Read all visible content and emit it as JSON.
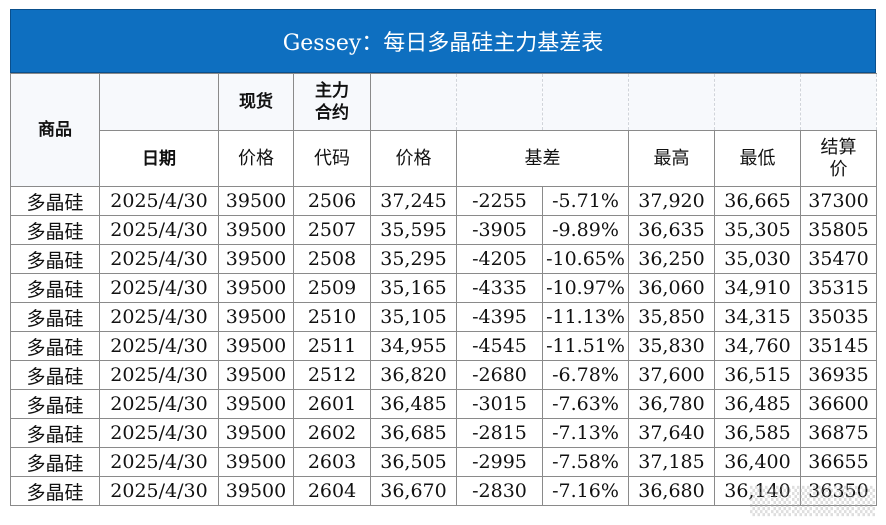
{
  "title": "Gessey：每日多晶硅主力基差表",
  "header": {
    "product": "商品",
    "spot": "现货",
    "main_contract": "主力\n合约",
    "date": "日期",
    "spot_price": "价格",
    "code": "代码",
    "price": "价格",
    "basis": "基差",
    "high": "最高",
    "low": "最低",
    "settle": "结算\n价"
  },
  "rows": [
    {
      "product": "多晶硅",
      "date": "2025/4/30",
      "spot": "39500",
      "code": "2506",
      "price": "37,245",
      "basis": "-2255",
      "basis_pct": "-5.71%",
      "high": "37,920",
      "low": "36,665",
      "settle": "37300"
    },
    {
      "product": "多晶硅",
      "date": "2025/4/30",
      "spot": "39500",
      "code": "2507",
      "price": "35,595",
      "basis": "-3905",
      "basis_pct": "-9.89%",
      "high": "36,635",
      "low": "35,305",
      "settle": "35805"
    },
    {
      "product": "多晶硅",
      "date": "2025/4/30",
      "spot": "39500",
      "code": "2508",
      "price": "35,295",
      "basis": "-4205",
      "basis_pct": "-10.65%",
      "high": "36,250",
      "low": "35,030",
      "settle": "35470"
    },
    {
      "product": "多晶硅",
      "date": "2025/4/30",
      "spot": "39500",
      "code": "2509",
      "price": "35,165",
      "basis": "-4335",
      "basis_pct": "-10.97%",
      "high": "36,060",
      "low": "34,910",
      "settle": "35315"
    },
    {
      "product": "多晶硅",
      "date": "2025/4/30",
      "spot": "39500",
      "code": "2510",
      "price": "35,105",
      "basis": "-4395",
      "basis_pct": "-11.13%",
      "high": "35,850",
      "low": "34,315",
      "settle": "35035"
    },
    {
      "product": "多晶硅",
      "date": "2025/4/30",
      "spot": "39500",
      "code": "2511",
      "price": "34,955",
      "basis": "-4545",
      "basis_pct": "-11.51%",
      "high": "35,830",
      "low": "34,760",
      "settle": "35145"
    },
    {
      "product": "多晶硅",
      "date": "2025/4/30",
      "spot": "39500",
      "code": "2512",
      "price": "36,820",
      "basis": "-2680",
      "basis_pct": "-6.78%",
      "high": "37,600",
      "low": "36,515",
      "settle": "36935"
    },
    {
      "product": "多晶硅",
      "date": "2025/4/30",
      "spot": "39500",
      "code": "2601",
      "price": "36,485",
      "basis": "-3015",
      "basis_pct": "-7.63%",
      "high": "36,780",
      "low": "36,485",
      "settle": "36600"
    },
    {
      "product": "多晶硅",
      "date": "2025/4/30",
      "spot": "39500",
      "code": "2602",
      "price": "36,685",
      "basis": "-2815",
      "basis_pct": "-7.13%",
      "high": "37,640",
      "low": "36,585",
      "settle": "36875"
    },
    {
      "product": "多晶硅",
      "date": "2025/4/30",
      "spot": "39500",
      "code": "2603",
      "price": "36,505",
      "basis": "-2995",
      "basis_pct": "-7.58%",
      "high": "37,185",
      "low": "36,400",
      "settle": "36655"
    },
    {
      "product": "多晶硅",
      "date": "2025/4/30",
      "spot": "39500",
      "code": "2604",
      "price": "36,670",
      "basis": "-2830",
      "basis_pct": "-7.16%",
      "high": "36,680",
      "low": "36,140",
      "settle": "36350"
    }
  ],
  "colors": {
    "title_bg": "#0e6fc0",
    "negative": "#ff0000",
    "product_text": "#1f3fbf"
  }
}
